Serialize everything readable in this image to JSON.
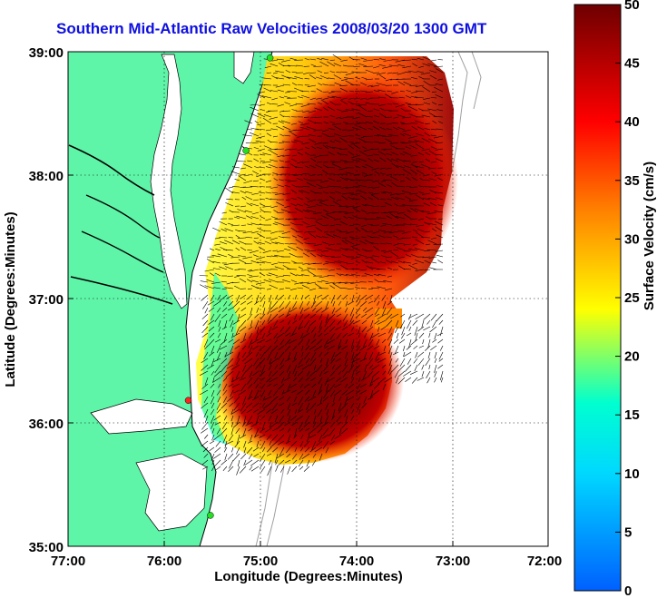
{
  "title": "Southern Mid-Atlantic Raw Velocities 2008/03/20 1300 GMT",
  "x_axis": {
    "label": "Longitude (Degrees:Minutes)",
    "ticks": [
      "77:00",
      "76:00",
      "75:00",
      "74:00",
      "73:00",
      "72:00"
    ]
  },
  "y_axis": {
    "label": "Latitude (Degrees:Minutes)",
    "ticks": [
      "39:00",
      "38:00",
      "37:00",
      "36:00",
      "35:00"
    ]
  },
  "colorbar": {
    "label": "Surface Velocity (cm/s)",
    "ticks": [
      "0",
      "5",
      "10",
      "15",
      "20",
      "25",
      "30",
      "35",
      "40",
      "45",
      "50"
    ],
    "min": 0,
    "max": 50,
    "colormap": [
      "#0060ff",
      "#00ffff",
      "#ffff00",
      "#ff7f00",
      "#ff0000",
      "#7a0000"
    ]
  },
  "colors": {
    "land": "#5ff5a8",
    "water": "#ffffff",
    "title": "#1010e0",
    "frame": "#000000",
    "station_red": "#ff2020",
    "station_green": "#22e022",
    "bathymetry": "#a0a0a0"
  },
  "stations": [
    {
      "name": "",
      "lon": -74.9,
      "lat": 38.95,
      "color": "green"
    },
    {
      "name": "",
      "lon": -75.15,
      "lat": 38.2,
      "color": "green"
    },
    {
      "name": "",
      "lon": -75.75,
      "lat": 36.18,
      "color": "red"
    },
    {
      "name": "",
      "lon": -75.52,
      "lat": 35.25,
      "color": "green"
    }
  ]
}
